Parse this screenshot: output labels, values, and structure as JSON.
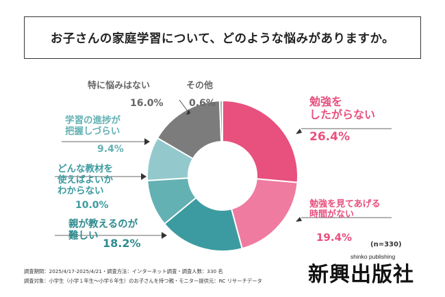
{
  "title": "お子さんの家庭学習について、どのような悩みがありますか。",
  "sample_note": "(n=330)",
  "footer": {
    "line1": "調査期間：2025/4/17-2025/4/21・調査方法：インターネット調査・調査人数：330 名",
    "line2": "調査対象：小学生（小学１年生〜小学６年生）のお子さんを持つ親・モニター提供元：RC リサーチデータ"
  },
  "logo": {
    "kanji": "新興出版社",
    "roman": "shinko publishing"
  },
  "chart_data": {
    "type": "pie",
    "donut": true,
    "slices": [
      {
        "label_lines": [
          "勉強を",
          "したがらない"
        ],
        "value": 26.4,
        "value_text": "26.4%",
        "color": "#e8507e"
      },
      {
        "label_lines": [
          "勉強を見てあげる",
          "時間がない"
        ],
        "value": 19.4,
        "value_text": "19.4%",
        "color": "#ef7ba0"
      },
      {
        "label_lines": [
          "親が教えるのが",
          "難しい"
        ],
        "value": 18.2,
        "value_text": "18.2%",
        "color": "#3c9ba0"
      },
      {
        "label_lines": [
          "どんな教材を",
          "使えばよいか",
          "わからない"
        ],
        "value": 10.0,
        "value_text": "10.0%",
        "color": "#63b1b3"
      },
      {
        "label_lines": [
          "学習の進捗が",
          "把握しづらい"
        ],
        "value": 9.4,
        "value_text": "9.4%",
        "color": "#93c9cc"
      },
      {
        "label_lines": [
          "特に悩みはない"
        ],
        "value": 16.0,
        "value_text": "16.0%",
        "color": "#7c7c7c"
      },
      {
        "label_lines": [
          "その他"
        ],
        "value": 0.6,
        "value_text": "0.6%",
        "color": "#a8a8a8"
      }
    ]
  }
}
